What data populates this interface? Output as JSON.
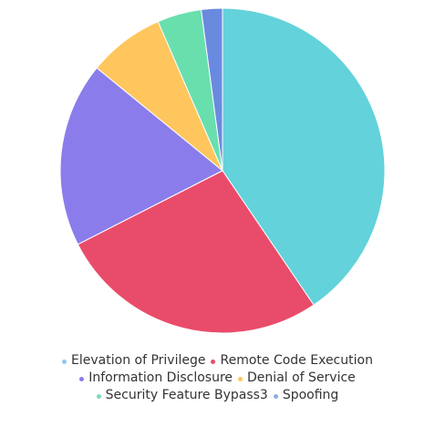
{
  "chart_data": {
    "type": "pie",
    "title": "",
    "categories": [
      "Elevation of Privilege",
      "Remote Code Execution",
      "Information Disclosure",
      "Denial of Service",
      "Security Feature Bypass3",
      "Spoofing"
    ],
    "values": [
      40.5,
      27.0,
      18.4,
      7.6,
      4.4,
      2.1
    ],
    "colors": [
      "#63d2da",
      "#e94c6a",
      "#8a7deb",
      "#ffc65d",
      "#69dfae",
      "#6a8adf"
    ],
    "legend_dot_colors": [
      "#8ec9ef",
      "#e94c6a",
      "#8a7deb",
      "#ffc65d",
      "#7fd8c0",
      "#8ab0e6"
    ],
    "legend_position": "bottom",
    "start_angle": "top",
    "direction": "clockwise"
  }
}
